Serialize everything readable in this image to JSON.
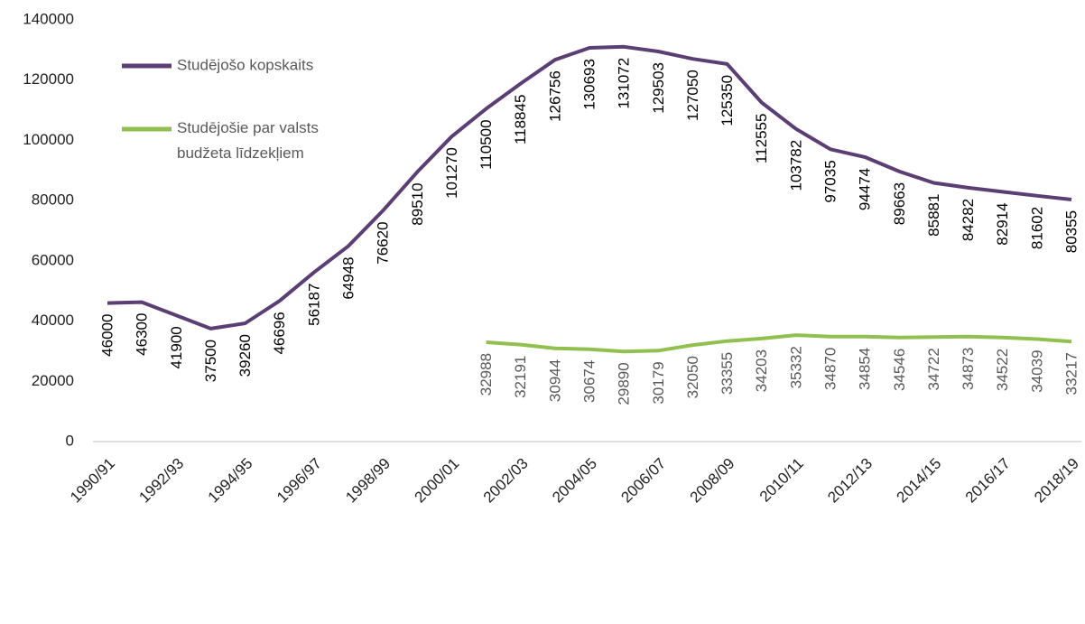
{
  "chart_data": {
    "type": "line",
    "categories": [
      "1990/91",
      null,
      "1992/93",
      null,
      "1994/95",
      null,
      "1996/97",
      null,
      "1998/99",
      null,
      "2000/01",
      null,
      "2002/03",
      null,
      "2004/05",
      null,
      "2006/07",
      null,
      "2008/09",
      null,
      "2010/11",
      null,
      "2012/13",
      null,
      "2014/15",
      null,
      "2016/17",
      null,
      "2018/19"
    ],
    "series": [
      {
        "name": "Studējošo kopskaits",
        "color": "#5b3e73",
        "label_color": "#000000",
        "values": [
          46000,
          46300,
          41900,
          37500,
          39260,
          46696,
          56187,
          64948,
          76620,
          89510,
          101270,
          110500,
          118845,
          126756,
          130693,
          131072,
          129503,
          127050,
          125350,
          112555,
          103782,
          97035,
          94474,
          89663,
          85881,
          84282,
          82914,
          81602,
          80355
        ]
      },
      {
        "name": "Studējošie par valsts budžeta līdzekļiem",
        "color": "#92c050",
        "label_color": "#595959",
        "values": [
          null,
          null,
          null,
          null,
          null,
          null,
          null,
          null,
          null,
          null,
          null,
          32988,
          32191,
          30944,
          30674,
          29890,
          30179,
          32050,
          33355,
          34203,
          35332,
          34870,
          34854,
          34546,
          34722,
          34873,
          34522,
          34039,
          33217
        ]
      }
    ],
    "ylim": [
      0,
      140000
    ],
    "yticks": [
      0,
      20000,
      40000,
      60000,
      80000,
      100000,
      120000,
      140000
    ],
    "grid": false,
    "legend": "top-left"
  }
}
